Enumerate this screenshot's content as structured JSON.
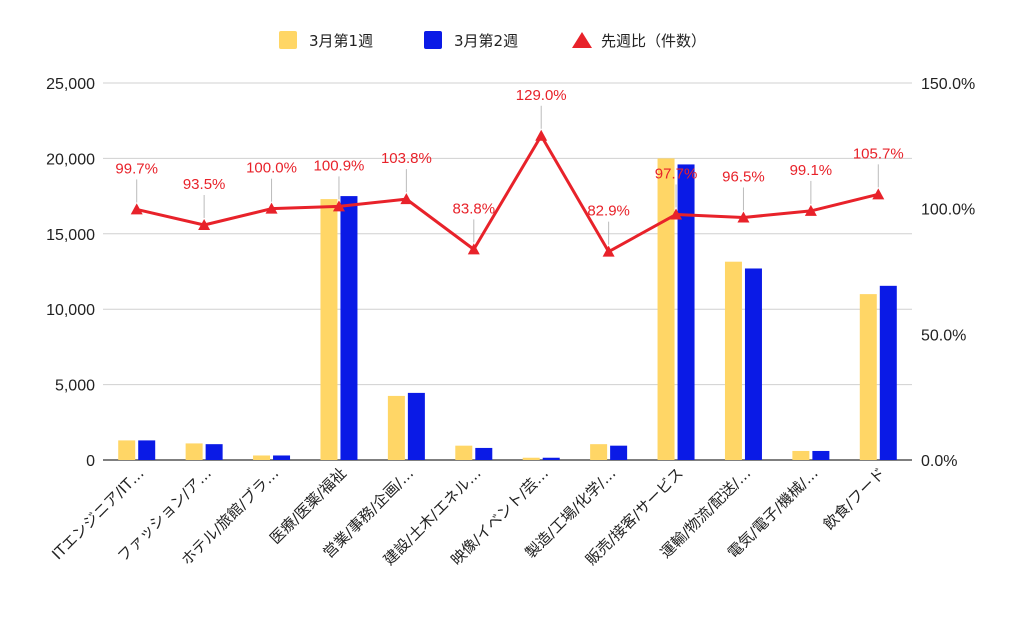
{
  "chart_data": {
    "type": "bar",
    "categories": [
      "ITエンジニア/IT…",
      "ファッション/ア…",
      "ホテル/旅館/ブラ…",
      "医療/医薬/福祉",
      "営業/事務/企画/…",
      "建設/土木/エネル…",
      "映像/イベント/芸…",
      "製造/工場/化学/…",
      "販売/接客/サービス",
      "運輸/物流/配送/…",
      "電気/電子/機械/…",
      "飲食/フード"
    ],
    "series": [
      {
        "name": "3月第1週",
        "type": "bar",
        "axis": "left",
        "color": "#ffd666",
        "values": [
          1300,
          1100,
          300,
          17300,
          4250,
          950,
          150,
          1050,
          20000,
          13150,
          600,
          11000
        ]
      },
      {
        "name": "3月第2週",
        "type": "bar",
        "axis": "left",
        "color": "#0a1ae6",
        "values": [
          1300,
          1050,
          300,
          17500,
          4450,
          800,
          150,
          950,
          19600,
          12700,
          600,
          11550
        ]
      },
      {
        "name": "先週比（件数）",
        "type": "line",
        "axis": "right",
        "color": "#e8222a",
        "marker": "triangle",
        "values": [
          99.7,
          93.5,
          100.0,
          100.9,
          103.8,
          83.8,
          129.0,
          82.9,
          97.7,
          96.5,
          99.1,
          105.7
        ],
        "labels": [
          "99.7%",
          "93.5%",
          "100.0%",
          "100.9%",
          "103.8%",
          "83.8%",
          "129.0%",
          "82.9%",
          "97.7%",
          "96.5%",
          "99.1%",
          "105.7%"
        ]
      }
    ],
    "y_left": {
      "ylim": [
        0,
        25000
      ],
      "ticks": [
        "0",
        "5,000",
        "10,000",
        "15,000",
        "20,000",
        "25,000"
      ]
    },
    "y_right": {
      "ylim": [
        0,
        150
      ],
      "ticks": [
        "0.0%",
        "50.0%",
        "100.0%",
        "150.0%"
      ]
    },
    "title": "",
    "xlabel": "",
    "ylabel": "",
    "grid": true,
    "legend": "top-center"
  }
}
